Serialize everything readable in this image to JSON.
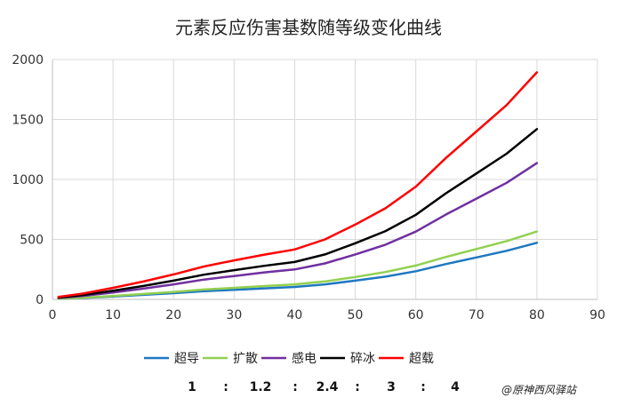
{
  "chart_data": {
    "type": "line",
    "title": "元素反应伤害基数随等级变化曲线",
    "xlabel": "",
    "ylabel": "",
    "xlim": [
      0,
      90
    ],
    "ylim": [
      0,
      2000
    ],
    "x_ticks": [
      0,
      10,
      20,
      30,
      40,
      50,
      60,
      70,
      80,
      90
    ],
    "y_ticks": [
      0,
      500,
      1000,
      1500,
      2000
    ],
    "grid": "vertical-and-horizontal",
    "legend_position": "bottom",
    "series": [
      {
        "name": "超导",
        "color": "#1f78c1",
        "x": [
          1,
          5,
          10,
          15,
          20,
          25,
          30,
          35,
          40,
          45,
          50,
          55,
          60,
          65,
          70,
          75,
          80
        ],
        "y": [
          5,
          12,
          24,
          38,
          52,
          68,
          80,
          92,
          104,
          125,
          156,
          190,
          235,
          295,
          350,
          405,
          472
        ]
      },
      {
        "name": "扩散",
        "color": "#92d050",
        "x": [
          1,
          5,
          10,
          15,
          20,
          25,
          30,
          35,
          40,
          45,
          50,
          55,
          60,
          65,
          70,
          75,
          80
        ],
        "y": [
          6,
          14,
          29,
          45,
          62,
          82,
          96,
          111,
          125,
          150,
          187,
          228,
          282,
          354,
          420,
          486,
          566
        ]
      },
      {
        "name": "感电",
        "color": "#7030a0",
        "x": [
          1,
          5,
          10,
          15,
          20,
          25,
          30,
          35,
          40,
          45,
          50,
          55,
          60,
          65,
          70,
          75,
          80
        ],
        "y": [
          12,
          29,
          58,
          90,
          125,
          165,
          195,
          225,
          250,
          300,
          375,
          456,
          565,
          708,
          840,
          972,
          1136
        ]
      },
      {
        "name": "碎冰",
        "color": "#000000",
        "x": [
          1,
          5,
          10,
          15,
          20,
          25,
          30,
          35,
          40,
          45,
          50,
          55,
          60,
          65,
          70,
          75,
          80
        ],
        "y": [
          15,
          36,
          72,
          112,
          156,
          206,
          244,
          280,
          312,
          375,
          468,
          570,
          705,
          885,
          1050,
          1215,
          1420
        ]
      },
      {
        "name": "超载",
        "color": "#ff0000",
        "x": [
          1,
          5,
          10,
          15,
          20,
          25,
          30,
          35,
          40,
          45,
          50,
          55,
          60,
          65,
          70,
          75,
          80
        ],
        "y": [
          20,
          48,
          96,
          149,
          208,
          274,
          325,
          373,
          416,
          500,
          624,
          760,
          940,
          1180,
          1400,
          1620,
          1893
        ]
      }
    ],
    "ratio_text": [
      "1",
      ":",
      "1.2",
      ":",
      "2.4",
      ":",
      "3",
      ":",
      "4"
    ],
    "watermark": "@原神西风驿站"
  }
}
